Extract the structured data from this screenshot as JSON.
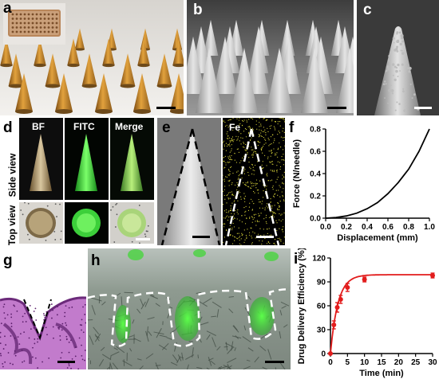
{
  "panels": {
    "a": {
      "label": "a"
    },
    "b": {
      "label": "b"
    },
    "c": {
      "label": "c"
    },
    "d": {
      "label": "d",
      "col_labels": [
        "BF",
        "FITC",
        "Merge"
      ],
      "row_labels": [
        "Side view",
        "Top view"
      ]
    },
    "e": {
      "label": "e",
      "channel": "Fe"
    },
    "f": {
      "label": "f"
    },
    "g": {
      "label": "g"
    },
    "h": {
      "label": "h"
    },
    "i": {
      "label": "i"
    }
  },
  "colors": {
    "line_f": "#000000",
    "line_i": "#e21c1c",
    "fitc_green": "#39d43a",
    "he_pink": "#c27bcc"
  },
  "chart_data": [
    {
      "id": "f",
      "type": "line",
      "xlabel": "Displacement (mm)",
      "ylabel": "Force (N/needle)",
      "xlim": [
        0.0,
        1.0
      ],
      "ylim": [
        0.0,
        0.8
      ],
      "xticks": [
        "0.0",
        "0.2",
        "0.4",
        "0.6",
        "0.8",
        "1.0"
      ],
      "yticks": [
        "0.0",
        "0.2",
        "0.4",
        "0.6",
        "0.8"
      ],
      "x": [
        0.0,
        0.1,
        0.2,
        0.3,
        0.4,
        0.5,
        0.6,
        0.7,
        0.8,
        0.9,
        1.0
      ],
      "series": [
        {
          "values": [
            0.0,
            0.006,
            0.02,
            0.045,
            0.085,
            0.14,
            0.22,
            0.32,
            0.44,
            0.6,
            0.8
          ]
        }
      ],
      "grid": false
    },
    {
      "id": "i",
      "type": "line",
      "xlabel": "Time (min)",
      "ylabel": "Drug Delivery Efficiency (%)",
      "xlim": [
        0,
        30
      ],
      "ylim": [
        0,
        120
      ],
      "xticks": [
        "0",
        "5",
        "10",
        "15",
        "20",
        "25",
        "30"
      ],
      "yticks": [
        "0",
        "30",
        "60",
        "90",
        "120"
      ],
      "x": [
        0,
        1,
        2,
        3,
        5,
        10,
        30
      ],
      "series": [
        {
          "values": [
            0,
            36,
            58,
            68,
            83,
            93,
            98
          ],
          "error": [
            0,
            5,
            6,
            5,
            5,
            3,
            3
          ]
        }
      ],
      "grid": false
    }
  ]
}
